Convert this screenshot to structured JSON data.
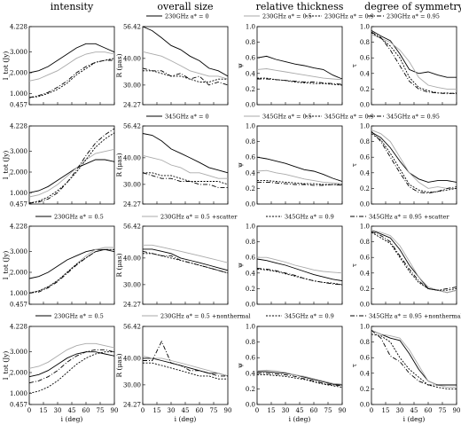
{
  "column_titles": [
    "intensity",
    "overall size",
    "relative thickness",
    "degree of symmetry"
  ],
  "x_axis": {
    "label": "i (deg)",
    "ticks": [
      0,
      15,
      30,
      45,
      60,
      75,
      90
    ],
    "range": [
      0,
      90
    ]
  },
  "y_axes": {
    "intensity": {
      "label": "I_tot (Jy)",
      "ticks": [
        "0.457",
        "1.000",
        "2.000",
        "3.000",
        "4.228"
      ],
      "range": [
        0.457,
        4.228
      ]
    },
    "size": {
      "label": "R (μas)",
      "ticks": [
        "24.27",
        "30.00",
        "40.00",
        "56.42"
      ],
      "range": [
        24.27,
        56.42
      ],
      "log": true
    },
    "thickness": {
      "label": "ψ",
      "ticks": [
        "0.0",
        "0.2",
        "0.4",
        "0.6",
        "0.8",
        "1.0"
      ],
      "range": [
        0,
        1
      ]
    },
    "symmetry": {
      "label": "τ",
      "ticks": [
        "0.0",
        "0.2",
        "0.4",
        "0.6",
        "0.8",
        "1.0"
      ],
      "range": [
        0,
        1
      ]
    }
  },
  "legends": [
    [
      "230GHz a* = 0",
      "230GHz a* = 0.5",
      "230GHz a* = 0.9",
      "230GHz a* = 0.95"
    ],
    [
      "345GHz a* = 0",
      "345GHz a* = 0.5",
      "345GHz a* = 0.9",
      "345GHz a* = 0.95"
    ],
    [
      "230GHz a* = 0.5",
      "230GHz a* = 0.5 +scatter",
      "345GHz a* = 0.9",
      "345GHz a* = 0.95 +scatter"
    ],
    [
      "230GHz a* = 0.5",
      "230GHz a* = 0.5 +nonthermal",
      "345GHz a* = 0.9",
      "345GHz a* = 0.95 +nonthermal"
    ]
  ],
  "line_styles": [
    {
      "color": "#000000",
      "dash": ""
    },
    {
      "color": "#aaaaaa",
      "dash": ""
    },
    {
      "color": "#000000",
      "dash": "2,1.5"
    },
    {
      "color": "#000000",
      "dash": "5,2,1,2"
    }
  ],
  "chart_data": {
    "type": "line",
    "x": [
      0,
      10,
      20,
      30,
      40,
      50,
      60,
      70,
      80,
      90
    ],
    "rows": [
      {
        "intensity": [
          [
            2.0,
            2.1,
            2.3,
            2.6,
            2.9,
            3.2,
            3.4,
            3.4,
            3.2,
            3.0
          ],
          [
            1.6,
            1.7,
            1.9,
            2.1,
            2.4,
            2.7,
            2.9,
            3.0,
            3.0,
            2.9
          ],
          [
            0.8,
            0.85,
            1.0,
            1.2,
            1.5,
            1.9,
            2.2,
            2.5,
            2.6,
            2.7
          ],
          [
            0.8,
            0.9,
            1.05,
            1.3,
            1.6,
            2.0,
            2.3,
            2.5,
            2.6,
            2.6
          ]
        ],
        "size": [
          [
            56.4,
            54,
            50,
            46,
            44,
            41,
            39,
            36,
            35,
            33
          ],
          [
            43,
            42,
            41,
            39,
            37,
            35,
            34,
            33,
            33,
            32
          ],
          [
            35,
            35,
            34,
            33,
            33,
            32,
            31,
            31,
            32,
            32
          ],
          [
            36,
            35,
            35,
            33,
            34,
            32,
            33,
            30,
            31,
            30
          ]
        ],
        "thickness": [
          [
            0.6,
            0.62,
            0.58,
            0.55,
            0.52,
            0.5,
            0.47,
            0.45,
            0.38,
            0.33
          ],
          [
            0.45,
            0.46,
            0.44,
            0.42,
            0.4,
            0.38,
            0.36,
            0.34,
            0.33,
            0.32
          ],
          [
            0.34,
            0.34,
            0.32,
            0.31,
            0.29,
            0.28,
            0.27,
            0.27,
            0.26,
            0.25
          ],
          [
            0.33,
            0.33,
            0.32,
            0.31,
            0.3,
            0.29,
            0.29,
            0.28,
            0.27,
            0.26
          ]
        ],
        "symmetry": [
          [
            0.95,
            0.88,
            0.82,
            0.65,
            0.45,
            0.4,
            0.42,
            0.38,
            0.35,
            0.35
          ],
          [
            0.9,
            0.85,
            0.8,
            0.7,
            0.55,
            0.35,
            0.25,
            0.22,
            0.2,
            0.2
          ],
          [
            0.92,
            0.85,
            0.75,
            0.6,
            0.35,
            0.22,
            0.18,
            0.15,
            0.15,
            0.14
          ],
          [
            0.93,
            0.86,
            0.7,
            0.5,
            0.3,
            0.2,
            0.16,
            0.15,
            0.14,
            0.15
          ]
        ]
      },
      {
        "intensity": [
          [
            1.0,
            1.1,
            1.3,
            1.6,
            1.9,
            2.2,
            2.4,
            2.6,
            2.6,
            2.5
          ],
          [
            0.8,
            0.9,
            1.1,
            1.4,
            1.8,
            2.2,
            2.6,
            2.9,
            3.0,
            3.1
          ],
          [
            0.5,
            0.6,
            0.8,
            1.1,
            1.5,
            2.0,
            2.6,
            3.2,
            3.6,
            3.9
          ],
          [
            0.5,
            0.55,
            0.7,
            1.0,
            1.5,
            2.1,
            2.8,
            3.4,
            3.8,
            4.1
          ]
        ],
        "size": [
          [
            52,
            51,
            48,
            44,
            42,
            40,
            38,
            36,
            35,
            34
          ],
          [
            41,
            40,
            39,
            37,
            36,
            34,
            34,
            33,
            32,
            32
          ],
          [
            34,
            34,
            33,
            33,
            32,
            31,
            31,
            31,
            31,
            30
          ],
          [
            34,
            33,
            32,
            32,
            31,
            31,
            30,
            30,
            29,
            29
          ]
        ],
        "thickness": [
          [
            0.6,
            0.58,
            0.55,
            0.52,
            0.48,
            0.44,
            0.42,
            0.38,
            0.33,
            0.29
          ],
          [
            0.42,
            0.43,
            0.4,
            0.38,
            0.35,
            0.32,
            0.3,
            0.28,
            0.27,
            0.26
          ],
          [
            0.3,
            0.3,
            0.29,
            0.28,
            0.27,
            0.26,
            0.26,
            0.25,
            0.25,
            0.25
          ],
          [
            0.28,
            0.28,
            0.27,
            0.26,
            0.25,
            0.25,
            0.24,
            0.24,
            0.25,
            0.24
          ]
        ],
        "symmetry": [
          [
            0.92,
            0.85,
            0.72,
            0.55,
            0.4,
            0.32,
            0.28,
            0.3,
            0.3,
            0.28
          ],
          [
            0.95,
            0.9,
            0.8,
            0.6,
            0.4,
            0.28,
            0.2,
            0.22,
            0.2,
            0.2
          ],
          [
            0.9,
            0.82,
            0.65,
            0.45,
            0.25,
            0.18,
            0.15,
            0.16,
            0.18,
            0.2
          ],
          [
            0.93,
            0.8,
            0.6,
            0.4,
            0.22,
            0.15,
            0.14,
            0.16,
            0.2,
            0.22
          ]
        ]
      },
      {
        "intensity": [
          [
            1.7,
            1.8,
            2.0,
            2.3,
            2.6,
            2.8,
            3.0,
            3.1,
            3.1,
            3.0
          ],
          [
            1.0,
            1.1,
            1.3,
            1.6,
            2.0,
            2.4,
            2.8,
            3.1,
            3.2,
            3.2
          ],
          [
            1.0,
            1.1,
            1.3,
            1.6,
            2.0,
            2.4,
            2.7,
            3.0,
            3.1,
            3.1
          ],
          [
            1.0,
            1.05,
            1.25,
            1.55,
            1.95,
            2.35,
            2.7,
            3.0,
            3.1,
            3.1
          ]
        ],
        "size": [
          [
            44,
            44,
            43,
            42,
            40,
            39,
            38,
            37,
            36,
            35
          ],
          [
            46,
            46,
            45,
            44,
            43,
            42,
            41,
            40,
            39,
            38
          ],
          [
            42,
            42,
            41,
            40,
            39,
            38,
            37,
            36,
            35,
            34
          ],
          [
            43,
            42,
            41,
            41,
            39,
            38,
            37,
            36,
            35,
            34
          ]
        ],
        "thickness": [
          [
            0.58,
            0.56,
            0.53,
            0.5,
            0.46,
            0.42,
            0.38,
            0.35,
            0.32,
            0.3
          ],
          [
            0.6,
            0.6,
            0.57,
            0.54,
            0.5,
            0.47,
            0.44,
            0.42,
            0.41,
            0.4
          ],
          [
            0.45,
            0.44,
            0.42,
            0.39,
            0.36,
            0.33,
            0.3,
            0.28,
            0.27,
            0.25
          ],
          [
            0.46,
            0.45,
            0.43,
            0.4,
            0.37,
            0.33,
            0.3,
            0.28,
            0.26,
            0.25
          ]
        ],
        "symmetry": [
          [
            0.95,
            0.9,
            0.85,
            0.7,
            0.5,
            0.35,
            0.2,
            0.18,
            0.15,
            0.18
          ],
          [
            0.95,
            0.92,
            0.88,
            0.75,
            0.55,
            0.35,
            0.22,
            0.18,
            0.15,
            0.18
          ],
          [
            0.92,
            0.85,
            0.78,
            0.6,
            0.42,
            0.28,
            0.2,
            0.18,
            0.18,
            0.2
          ],
          [
            0.93,
            0.88,
            0.8,
            0.62,
            0.45,
            0.3,
            0.2,
            0.18,
            0.2,
            0.22
          ]
        ]
      },
      {
        "intensity": [
          [
            1.8,
            1.9,
            2.1,
            2.4,
            2.7,
            2.9,
            3.0,
            3.0,
            2.9,
            2.8
          ],
          [
            2.2,
            2.3,
            2.5,
            2.8,
            3.1,
            3.3,
            3.4,
            3.4,
            3.3,
            3.2
          ],
          [
            1.0,
            1.1,
            1.3,
            1.6,
            2.0,
            2.4,
            2.7,
            2.9,
            3.0,
            3.0
          ],
          [
            1.5,
            1.6,
            1.8,
            2.1,
            2.5,
            2.8,
            3.0,
            3.1,
            3.1,
            3.0
          ]
        ],
        "size": [
          [
            40,
            40,
            39,
            38,
            37,
            36,
            35,
            34,
            34,
            33
          ],
          [
            41,
            40,
            40,
            39,
            38,
            37,
            36,
            35,
            34,
            33
          ],
          [
            38,
            38,
            37,
            36,
            35,
            34,
            33,
            33,
            32,
            32
          ],
          [
            39,
            39,
            48,
            38,
            37,
            35,
            35,
            34,
            33,
            33
          ]
        ],
        "thickness": [
          [
            0.42,
            0.42,
            0.41,
            0.4,
            0.38,
            0.35,
            0.32,
            0.29,
            0.26,
            0.25
          ],
          [
            0.43,
            0.44,
            0.43,
            0.41,
            0.38,
            0.36,
            0.33,
            0.3,
            0.27,
            0.26
          ],
          [
            0.38,
            0.38,
            0.37,
            0.36,
            0.34,
            0.32,
            0.29,
            0.26,
            0.24,
            0.22
          ],
          [
            0.4,
            0.4,
            0.39,
            0.38,
            0.36,
            0.33,
            0.3,
            0.27,
            0.25,
            0.24
          ]
        ],
        "symmetry": [
          [
            0.95,
            0.9,
            0.85,
            0.82,
            0.65,
            0.45,
            0.3,
            0.25,
            0.25,
            0.25
          ],
          [
            0.95,
            0.9,
            0.88,
            0.85,
            0.7,
            0.5,
            0.3,
            0.25,
            0.22,
            0.22
          ],
          [
            0.9,
            0.88,
            0.8,
            0.6,
            0.45,
            0.35,
            0.25,
            0.22,
            0.2,
            0.2
          ],
          [
            0.95,
            0.85,
            0.62,
            0.55,
            0.4,
            0.3,
            0.25,
            0.25,
            0.25,
            0.25
          ]
        ]
      }
    ]
  }
}
